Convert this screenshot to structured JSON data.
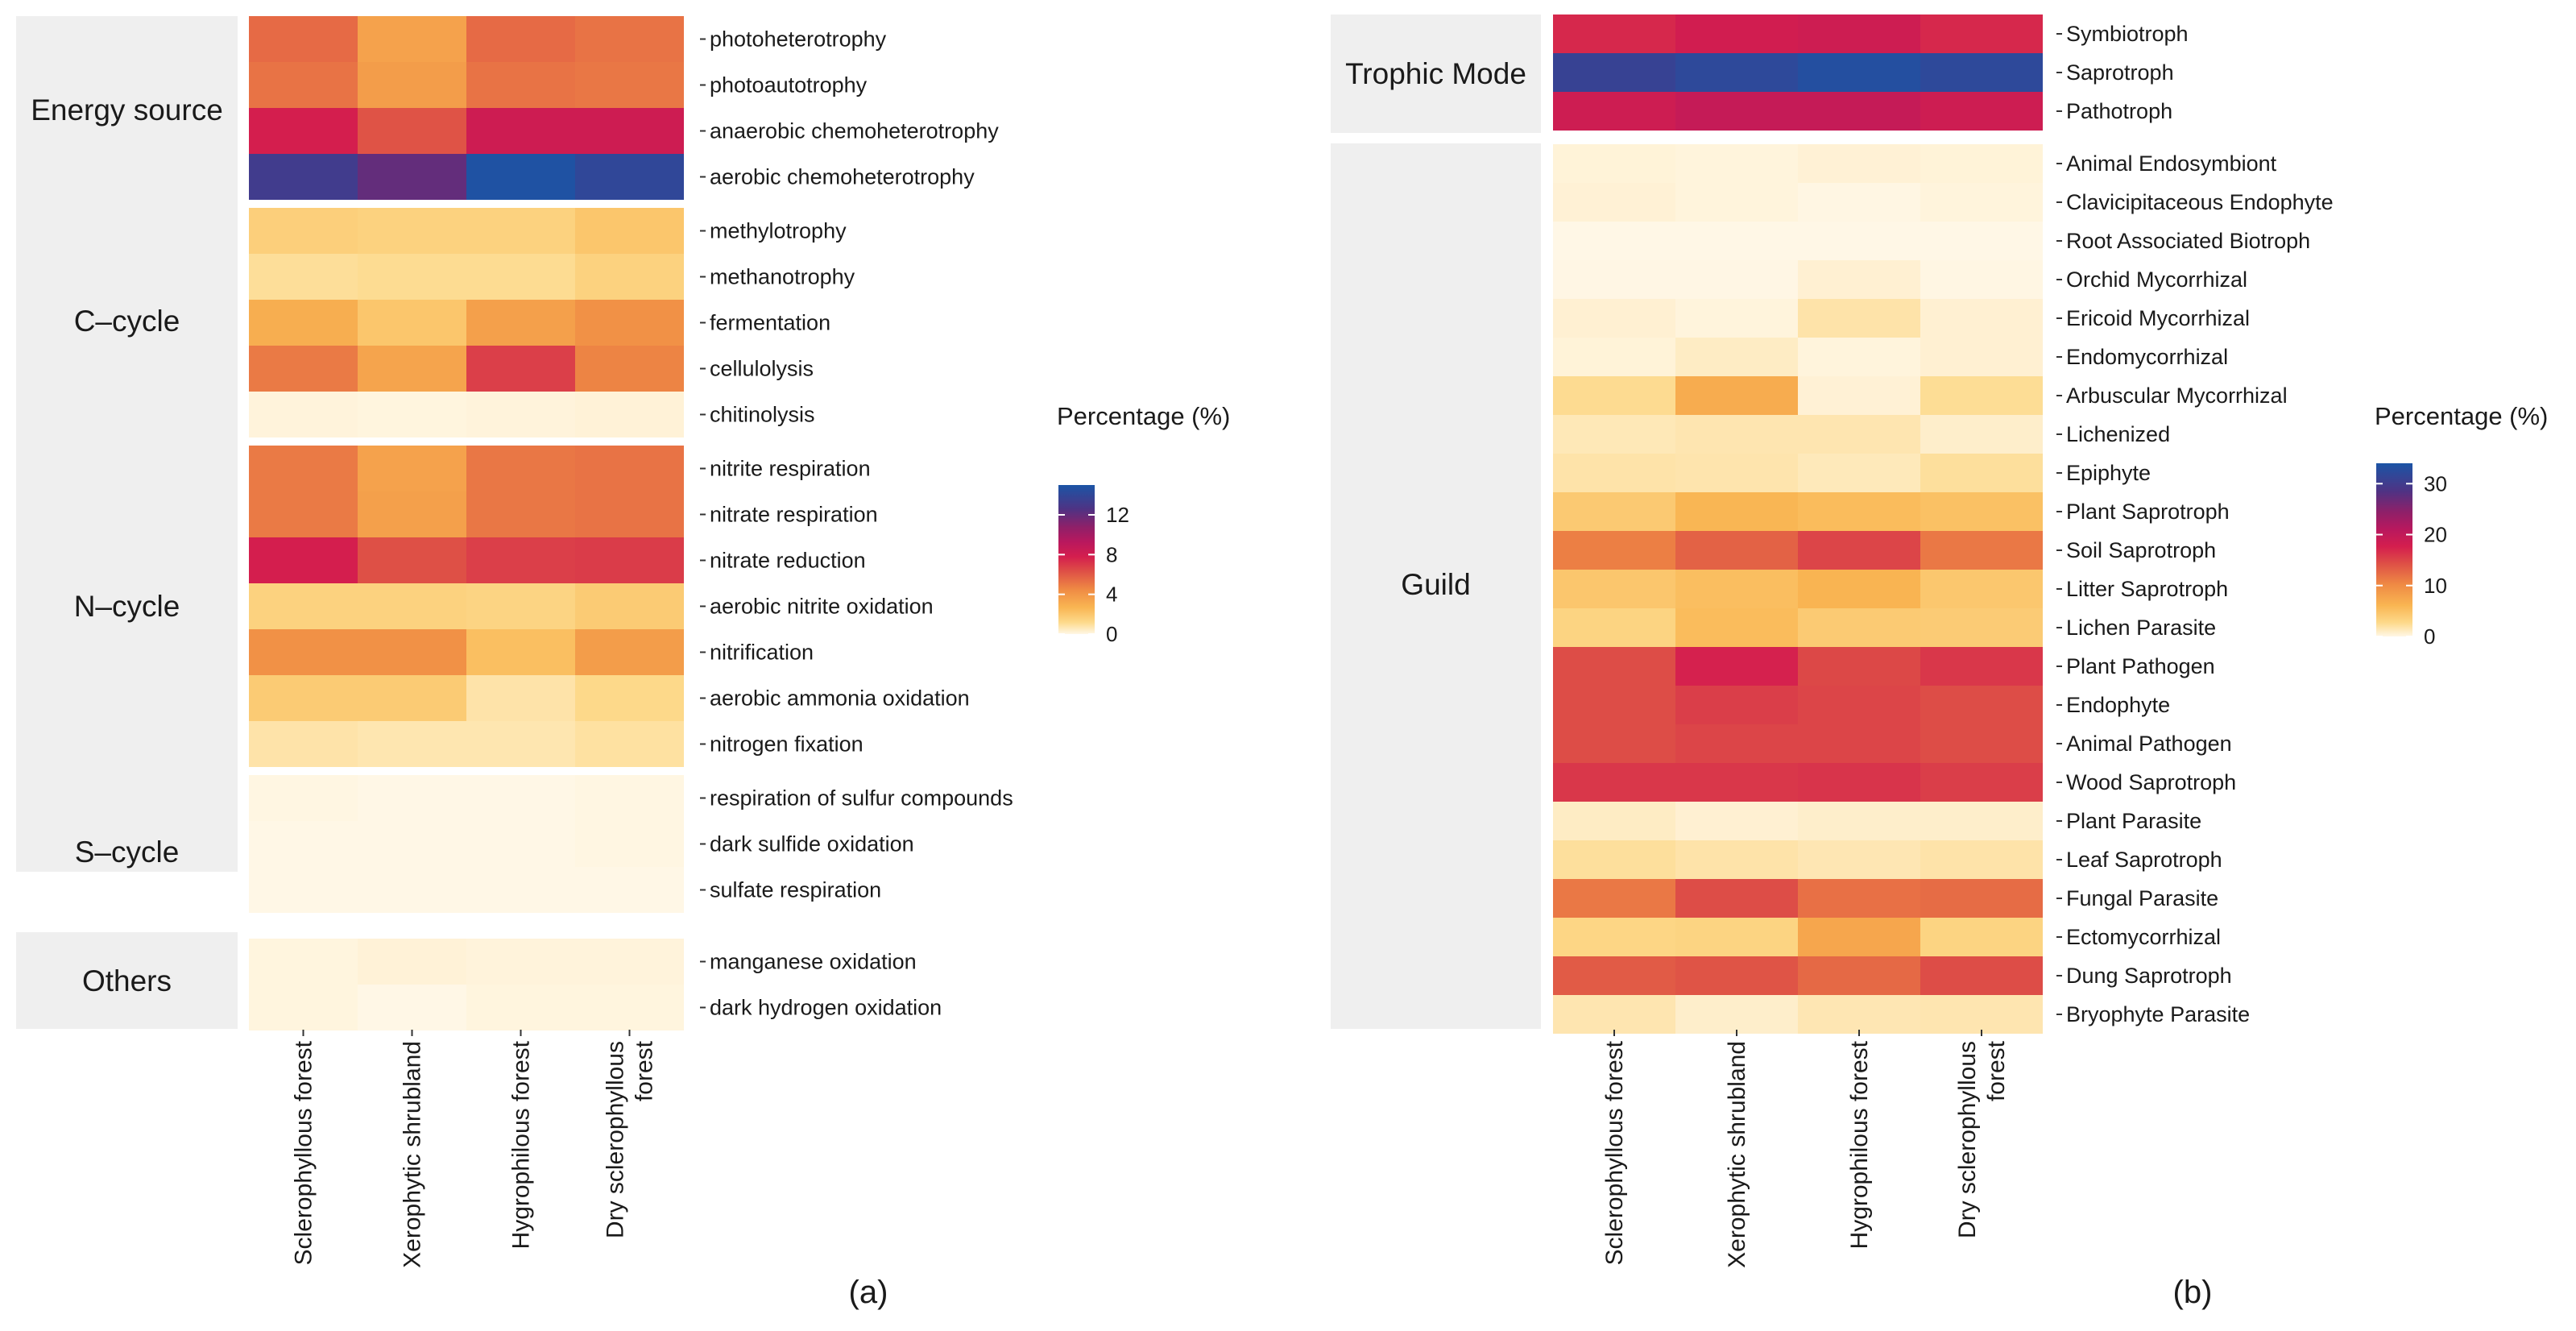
{
  "chart_data": [
    {
      "type": "heatmap",
      "panel_label": "(a)",
      "columns": [
        "Sclerophyllous forest",
        "Xerophytic shrubland",
        "Hygrophilous forest",
        "Dry sclerophyllous forest"
      ],
      "colorbar": {
        "title": "Percentage (%)",
        "ticks": [
          0,
          4,
          8,
          12
        ],
        "range": [
          0,
          15
        ]
      },
      "groups": [
        {
          "name": "Energy source",
          "rows": [
            {
              "label": "photoheterotrophy",
              "values": [
                5.5,
                3.5,
                5.5,
                5.2
              ]
            },
            {
              "label": "photoautotrophy",
              "values": [
                5.2,
                3.7,
                5.2,
                5.1
              ]
            },
            {
              "label": "anaerobic chemoheterotrophy",
              "values": [
                7.8,
                6.2,
                8.2,
                8.2
              ]
            },
            {
              "label": "aerobic chemoheterotrophy",
              "values": [
                13.2,
                12.0,
                14.8,
                14.0
              ]
            }
          ]
        },
        {
          "name": "C–cycle",
          "rows": [
            {
              "label": "methylotrophy",
              "values": [
                1.6,
                1.5,
                1.5,
                2.0
              ]
            },
            {
              "label": "methanotrophy",
              "values": [
                1.0,
                1.1,
                1.1,
                1.5
              ]
            },
            {
              "label": "fermentation",
              "values": [
                3.0,
                2.0,
                3.6,
                4.2
              ]
            },
            {
              "label": "cellulolysis",
              "values": [
                5.0,
                3.4,
                6.8,
                4.7
              ]
            },
            {
              "label": "chitinolysis",
              "values": [
                0.15,
                0.1,
                0.15,
                0.2
              ]
            }
          ]
        },
        {
          "name": "N–cycle",
          "rows": [
            {
              "label": "nitrite respiration",
              "values": [
                5.0,
                3.5,
                5.1,
                5.2
              ]
            },
            {
              "label": "nitrate respiration",
              "values": [
                5.0,
                3.6,
                5.1,
                5.2
              ]
            },
            {
              "label": "nitrate reduction",
              "values": [
                7.8,
                6.3,
                6.8,
                6.9
              ]
            },
            {
              "label": "aerobic nitrite oxidation",
              "values": [
                1.5,
                1.5,
                1.4,
                1.8
              ]
            },
            {
              "label": "nitrification",
              "values": [
                4.2,
                4.2,
                2.3,
                3.7
              ]
            },
            {
              "label": "aerobic ammonia oxidation",
              "values": [
                1.8,
                1.8,
                0.8,
                1.2
              ]
            },
            {
              "label": "nitrogen fixation",
              "values": [
                0.8,
                0.7,
                0.7,
                0.9
              ]
            }
          ]
        },
        {
          "name": "S–cycle",
          "rows": [
            {
              "label": "respiration of sulfur compounds",
              "values": [
                0.05,
                0,
                0,
                0.05
              ]
            },
            {
              "label": "dark sulfide oxidation",
              "values": [
                0,
                0,
                0,
                0.05
              ]
            },
            {
              "label": "sulfate respiration",
              "values": [
                0,
                0,
                0,
                0
              ]
            }
          ]
        },
        {
          "name": "Others",
          "rows": [
            {
              "label": "manganese oxidation",
              "values": [
                0.1,
                0.2,
                0.15,
                0.15
              ]
            },
            {
              "label": "dark hydrogen oxidation",
              "values": [
                0.1,
                0,
                0.1,
                0.1
              ]
            }
          ]
        }
      ]
    },
    {
      "type": "heatmap",
      "panel_label": "(b)",
      "columns": [
        "Sclerophyllous forest",
        "Xerophytic shrubland",
        "Hygrophilous forest",
        "Dry sclerophyllous forest"
      ],
      "colorbar": {
        "title": "Percentage (%)",
        "ticks": [
          0,
          10,
          20,
          30
        ],
        "range": [
          0,
          34
        ]
      },
      "groups": [
        {
          "name": "Trophic Mode",
          "rows": [
            {
              "label": "Symbiotroph",
              "values": [
                17,
                18,
                18.5,
                17
              ]
            },
            {
              "label": "Saprotroph",
              "values": [
                31,
                32,
                33,
                32
              ]
            },
            {
              "label": "Pathotroph",
              "values": [
                18.5,
                19.5,
                19.5,
                18.5
              ]
            }
          ]
        },
        {
          "name": "Guild",
          "rows": [
            {
              "label": "Animal Endosymbiont",
              "values": [
                0.4,
                0.3,
                0.5,
                0.4
              ]
            },
            {
              "label": "Clavicipitaceous Endophyte",
              "values": [
                0.5,
                0.3,
                0.1,
                0.3
              ]
            },
            {
              "label": "Root Associated Biotroph",
              "values": [
                0,
                0,
                0,
                0
              ]
            },
            {
              "label": "Orchid Mycorrhizal",
              "values": [
                0.05,
                0.05,
                0.6,
                0.1
              ]
            },
            {
              "label": "Ericoid Mycorrhizal",
              "values": [
                0.6,
                0.3,
                1.8,
                0.6
              ]
            },
            {
              "label": "Endomycorrhizal",
              "values": [
                0.4,
                1.0,
                0.3,
                0.6
              ]
            },
            {
              "label": "Arbuscular Mycorrhizal",
              "values": [
                2.5,
                7.0,
                0.5,
                2.4
              ]
            },
            {
              "label": "Lichenized",
              "values": [
                1.4,
                1.6,
                1.6,
                0.8
              ]
            },
            {
              "label": "Epiphyte",
              "values": [
                1.8,
                1.7,
                1.3,
                2.2
              ]
            },
            {
              "label": "Plant Saprotroph",
              "values": [
                4.2,
                6.0,
                5.5,
                5.0
              ]
            },
            {
              "label": "Soil Saprotroph",
              "values": [
                11,
                13,
                15,
                11.5
              ]
            },
            {
              "label": "Litter Saprotroph",
              "values": [
                4.5,
                5.3,
                6.2,
                4.4
              ]
            },
            {
              "label": "Lichen Parasite",
              "values": [
                3.2,
                5.5,
                4.1,
                4.0
              ]
            },
            {
              "label": "Plant Pathogen",
              "values": [
                14.5,
                17.5,
                14.8,
                16
              ]
            },
            {
              "label": "Endophyte",
              "values": [
                14.5,
                15.5,
                15,
                14.5
              ]
            },
            {
              "label": "Animal Pathogen",
              "values": [
                14.5,
                15,
                15,
                14.5
              ]
            },
            {
              "label": "Wood Saprotroph",
              "values": [
                16,
                16,
                16.2,
                15.5
              ]
            },
            {
              "label": "Plant Parasite",
              "values": [
                1.0,
                0.6,
                0.8,
                0.8
              ]
            },
            {
              "label": "Leaf Saprotroph",
              "values": [
                2.2,
                1.8,
                1.5,
                1.8
              ]
            },
            {
              "label": "Fungal Parasite",
              "values": [
                11.5,
                14.5,
                12,
                12.3
              ]
            },
            {
              "label": "Ectomycorrhizal",
              "values": [
                3.0,
                3.2,
                7.5,
                3.2
              ]
            },
            {
              "label": "Dung Saprotroph",
              "values": [
                13.5,
                14,
                12.5,
                14.5
              ]
            },
            {
              "label": "Bryophyte Parasite",
              "values": [
                1.6,
                0.8,
                1.5,
                1.6
              ]
            }
          ]
        }
      ]
    }
  ]
}
